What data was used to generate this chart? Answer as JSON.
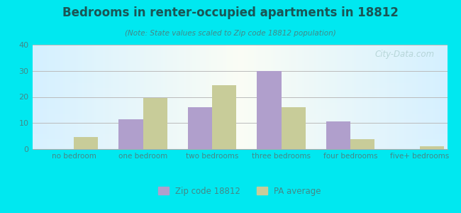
{
  "title": "Bedrooms in renter-occupied apartments in 18812",
  "subtitle": "(Note: State values scaled to Zip code 18812 population)",
  "categories": [
    "no bedroom",
    "one bedroom",
    "two bedrooms",
    "three bedrooms",
    "four bedrooms",
    "five+ bedrooms"
  ],
  "zip_values": [
    0,
    11.5,
    16,
    30,
    10.5,
    0
  ],
  "pa_values": [
    4.5,
    19.5,
    24.5,
    16,
    3.8,
    1.2
  ],
  "zip_color": "#b09fcc",
  "pa_color": "#c8cc99",
  "background_outer": "#00e8f0",
  "grid_color": "#cccccc",
  "axis_label_color": "#448888",
  "title_color": "#1a5555",
  "subtitle_color": "#448888",
  "ylim": [
    0,
    40
  ],
  "yticks": [
    0,
    10,
    20,
    30,
    40
  ],
  "legend_zip_label": "Zip code 18812",
  "legend_pa_label": "PA average",
  "bar_width": 0.35,
  "watermark": "⌕ City-Data.com"
}
